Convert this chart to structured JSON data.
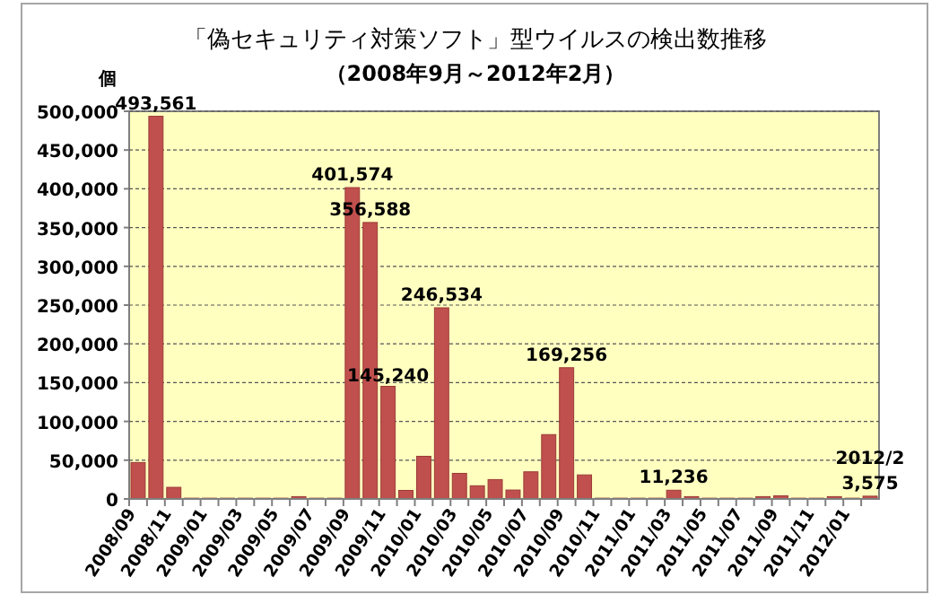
{
  "chart_data": {
    "type": "bar",
    "title": "「偽セキュリティ対策ソフト」型ウイルスの検出数推移",
    "subtitle": "（2008年9月～2012年2月）",
    "ylabel": "個",
    "annotations": [
      "2012/2"
    ],
    "categories": [
      "2008/09",
      null,
      "2008/11",
      null,
      "2009/01",
      null,
      "2009/03",
      null,
      "2009/05",
      null,
      "2009/07",
      null,
      "2009/09",
      null,
      "2009/11",
      null,
      "2010/01",
      null,
      "2010/03",
      null,
      "2010/05",
      null,
      "2010/07",
      null,
      "2010/09",
      null,
      "2010/11",
      null,
      "2011/01",
      null,
      "2011/03",
      null,
      "2011/05",
      null,
      "2011/07",
      null,
      "2011/09",
      null,
      "2011/11",
      null,
      "2012/01",
      null
    ],
    "values": [
      47000,
      493561,
      15000,
      1000,
      1000,
      1000,
      1000,
      1000,
      1000,
      3000,
      1000,
      1000,
      401574,
      356588,
      145240,
      11000,
      55000,
      246534,
      33000,
      17000,
      25000,
      11500,
      35000,
      83000,
      169256,
      31000,
      1000,
      1000,
      1000,
      1000,
      11236,
      3000,
      1000,
      1000,
      1000,
      3000,
      4000,
      1000,
      1000,
      3000,
      1000,
      3575
    ],
    "value_labels": [
      null,
      "493,561",
      null,
      null,
      null,
      null,
      null,
      null,
      null,
      null,
      null,
      null,
      "401,574",
      "356,588",
      "145,240",
      null,
      null,
      "246,534",
      null,
      null,
      null,
      null,
      null,
      null,
      "169,256",
      null,
      null,
      null,
      null,
      null,
      "11,236",
      null,
      null,
      null,
      null,
      null,
      null,
      null,
      null,
      null,
      null,
      "3,575"
    ],
    "color": "#c0504d",
    "ylim": [
      0,
      500000
    ],
    "yticks": [
      {
        "value": 0,
        "label": "0"
      },
      {
        "value": 50000,
        "label": "50,000"
      },
      {
        "value": 100000,
        "label": "100,000"
      },
      {
        "value": 150000,
        "label": "150,000"
      },
      {
        "value": 200000,
        "label": "200,000"
      },
      {
        "value": 250000,
        "label": "250,000"
      },
      {
        "value": 300000,
        "label": "300,000"
      },
      {
        "value": 350000,
        "label": "350,000"
      },
      {
        "value": 400000,
        "label": "400,000"
      },
      {
        "value": 450000,
        "label": "450,000"
      },
      {
        "value": 500000,
        "label": "500,000"
      }
    ],
    "grid": "y",
    "legend": false
  }
}
